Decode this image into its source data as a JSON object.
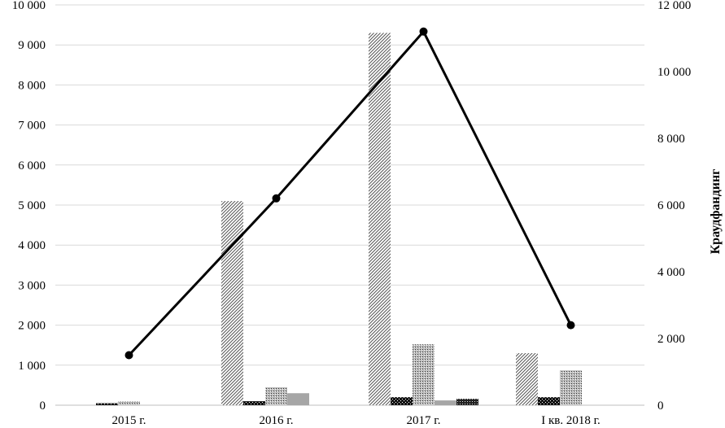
{
  "chart_data": {
    "type": "bar",
    "categories": [
      "2015 г.",
      "2016 г.",
      "2017 г.",
      "I кв. 2018 г."
    ],
    "y_left": {
      "ylim": [
        0,
        10000
      ],
      "ticks": [
        "0",
        "1 000",
        "2 000",
        "3 000",
        "4 000",
        "5 000",
        "6 000",
        "7 000",
        "8 000",
        "9 000",
        "10 000"
      ]
    },
    "y_right": {
      "label": "Краудфандинг",
      "ylim": [
        0,
        12000
      ],
      "ticks": [
        "0",
        "2 000",
        "4 000",
        "6 000",
        "8 000",
        "10 000",
        "12 000"
      ]
    },
    "bar_series": [
      {
        "pattern": "diag-dense",
        "values": [
          0,
          5100,
          9300,
          1300
        ]
      },
      {
        "pattern": "checker-dark",
        "values": [
          50,
          100,
          200,
          200
        ]
      },
      {
        "pattern": "dots-gray",
        "values": [
          100,
          450,
          1520,
          870
        ]
      },
      {
        "pattern": "solid-gray",
        "values": [
          0,
          300,
          120,
          0
        ]
      },
      {
        "pattern": "checker-dark2",
        "values": [
          0,
          0,
          160,
          0
        ]
      }
    ],
    "line_series": {
      "axis": "right",
      "values": [
        1500,
        6200,
        11200,
        2400
      ]
    },
    "grid": true,
    "legend": "none"
  },
  "colors": {
    "line": "#000000",
    "grid": "#d9d9d9",
    "solid_bar": "#a6a6a6"
  }
}
